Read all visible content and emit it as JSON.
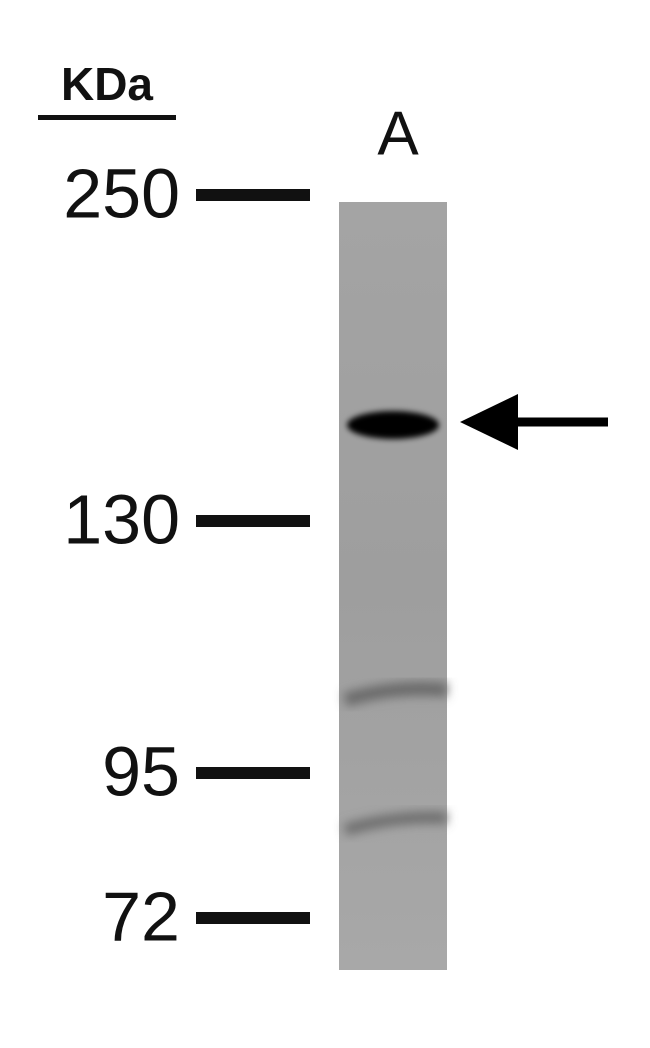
{
  "header": {
    "unit": "KDa",
    "lane": "A"
  },
  "markers": [
    250,
    130,
    95,
    72
  ]
}
